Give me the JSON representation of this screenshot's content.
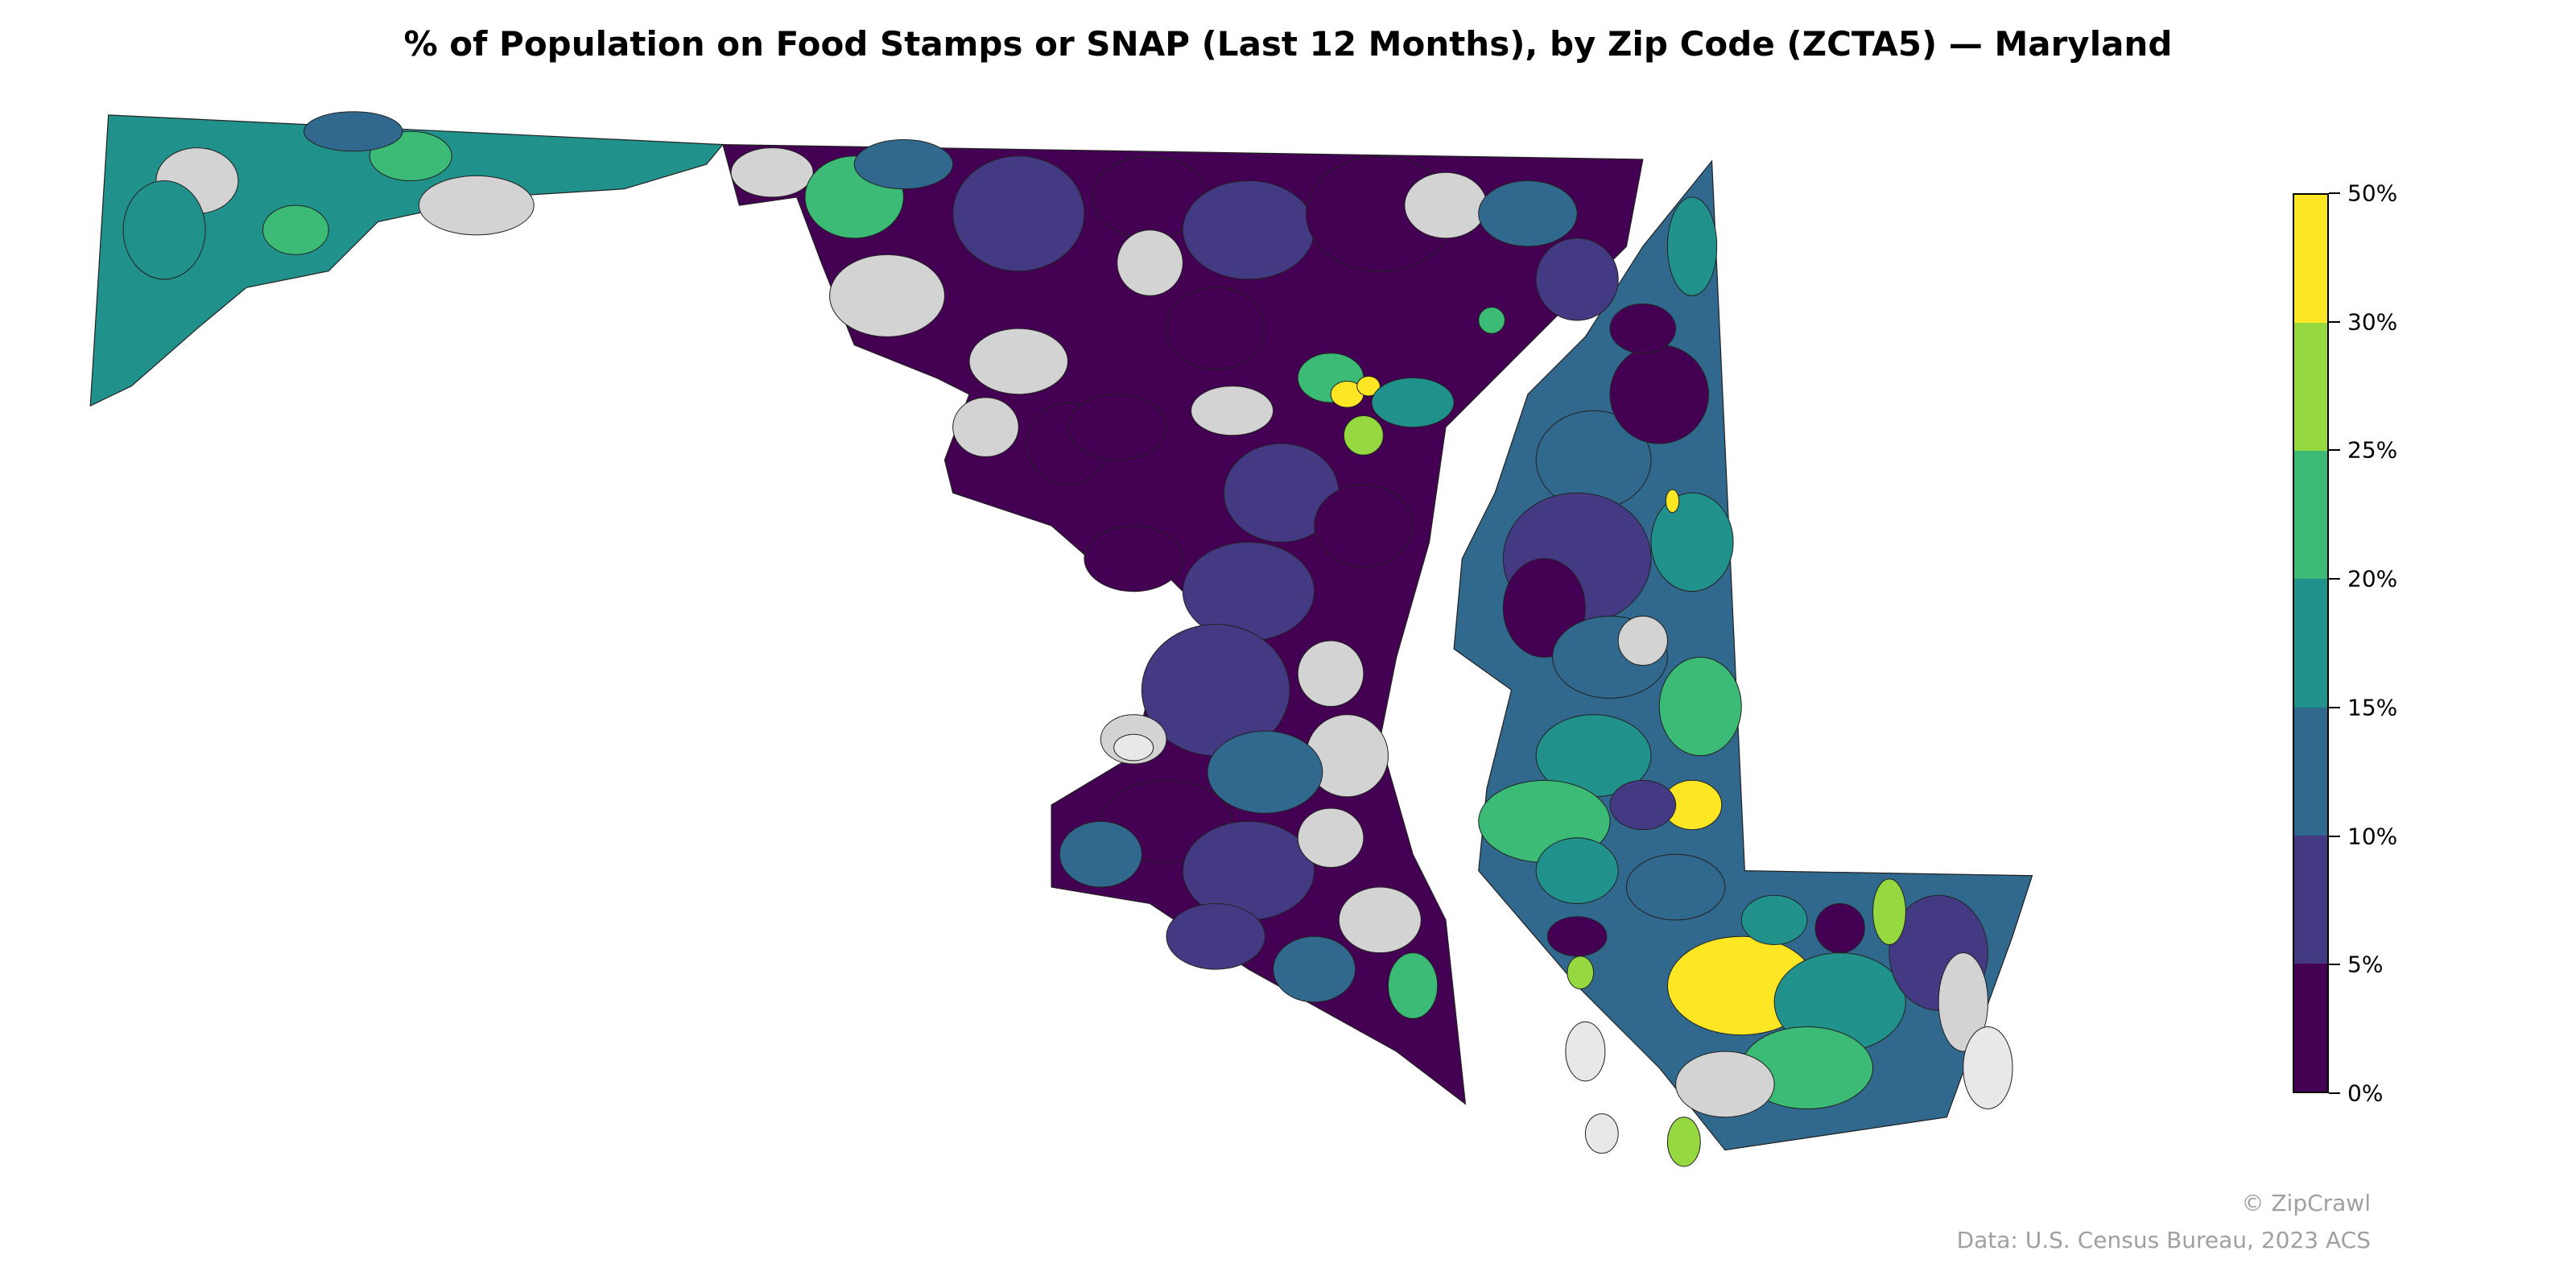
{
  "title": "% of Population on Food Stamps or SNAP (Last 12 Months), by Zip Code (ZCTA5) — Maryland",
  "legend": {
    "ticks": [
      "50%",
      "30%",
      "25%",
      "20%",
      "15%",
      "10%",
      "5%",
      "0%"
    ],
    "bins": [
      {
        "range": "30%–50%",
        "color": "#fde725"
      },
      {
        "range": "25%–30%",
        "color": "#95d840"
      },
      {
        "range": "20%–25%",
        "color": "#3bbb75"
      },
      {
        "range": "15%–20%",
        "color": "#21918c"
      },
      {
        "range": "10%–15%",
        "color": "#31688e"
      },
      {
        "range": "5%–10%",
        "color": "#443983"
      },
      {
        "range": "0%–5%",
        "color": "#440154"
      }
    ],
    "no_data_color": "#d3d3d3",
    "water_color": "#e8e8e8"
  },
  "credits": {
    "brand": "© ZipCrawl",
    "source": "Data: U.S. Census Bureau, 2023 ACS"
  }
}
